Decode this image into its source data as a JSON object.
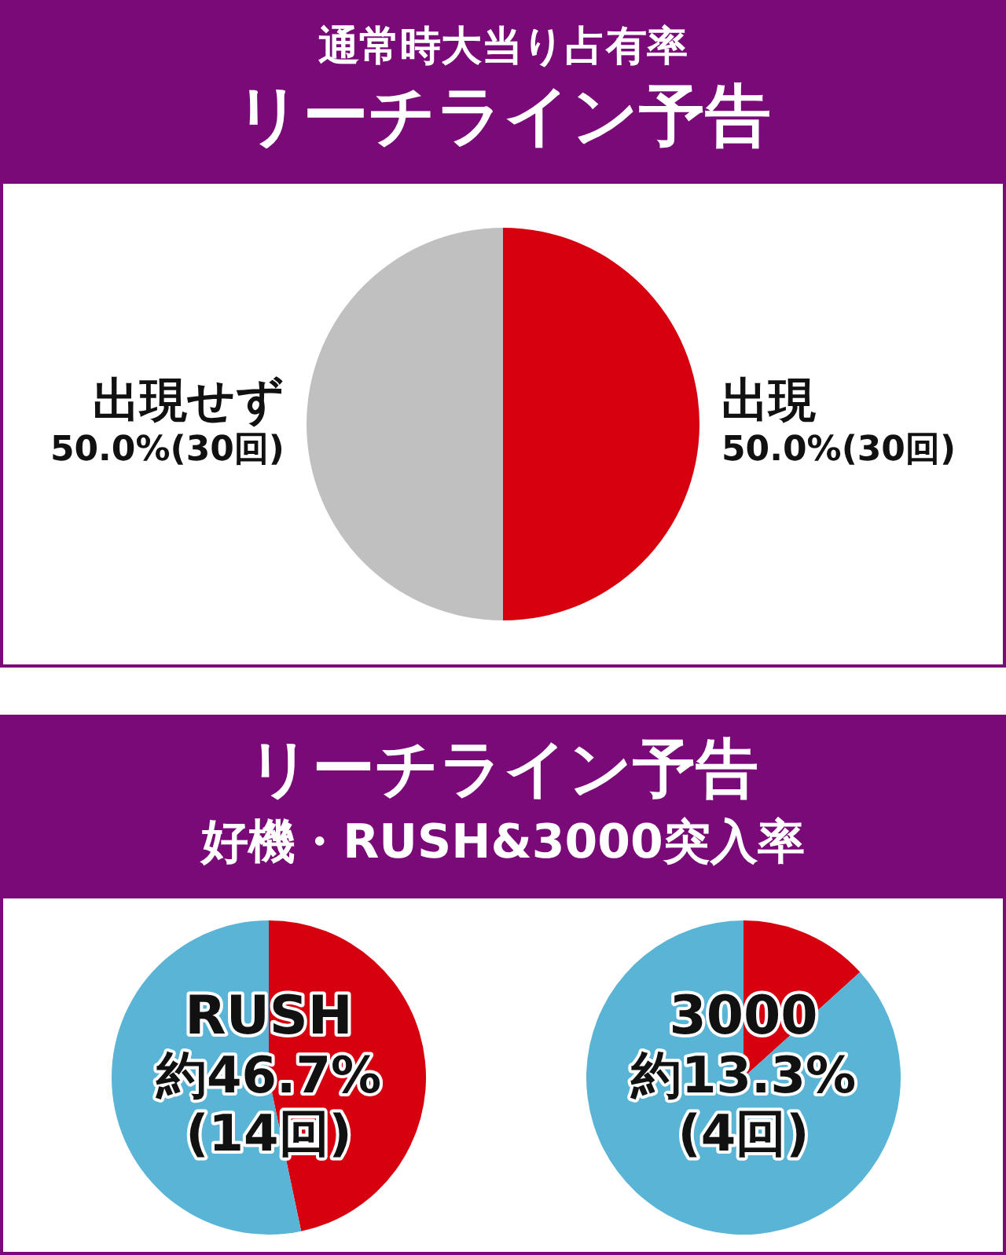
{
  "chart_data": [
    {
      "type": "pie",
      "title": "通常時大当り占有率",
      "subtitle": "リーチライン予告",
      "categories": [
        "出現",
        "出現せず"
      ],
      "values": [
        50.0,
        50.0
      ],
      "colors": [
        "#d7000f",
        "#c0c0c0"
      ],
      "value_labels": [
        "50.0%(30回)",
        "50.0%(30回)"
      ]
    },
    {
      "type": "pie",
      "title": "リーチライン予告",
      "subtitle": "好機・RUSH&3000突入率",
      "categories": [
        "RUSH",
        null
      ],
      "values": [
        46.7,
        53.3
      ],
      "colors": [
        "#d7000f",
        "#5ab4d6"
      ],
      "value_labels": [
        "約46.7%\n(14回)",
        null
      ]
    },
    {
      "type": "pie",
      "categories": [
        "3000",
        null
      ],
      "values": [
        13.3,
        86.7
      ],
      "colors": [
        "#d7000f",
        "#5ab4d6"
      ],
      "value_labels": [
        "約13.3%\n(4回)",
        null
      ]
    }
  ]
}
